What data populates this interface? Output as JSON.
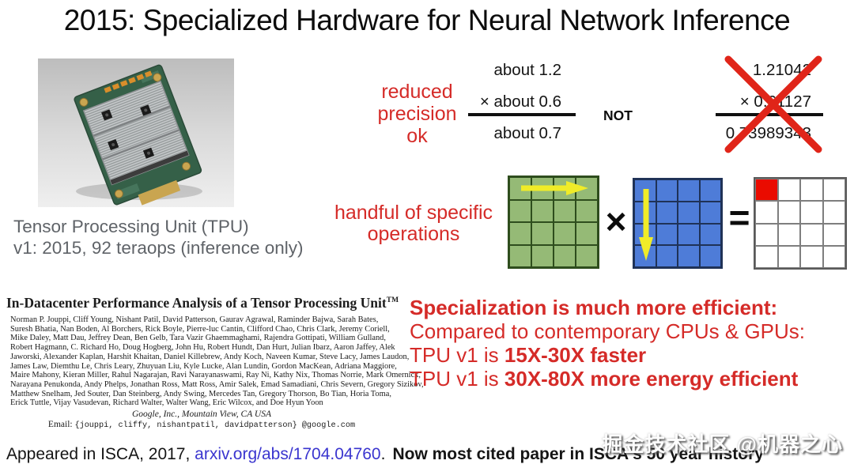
{
  "title": "2015: Specialized Hardware for Neural Network Inference",
  "tpu": {
    "caption_line1": "Tensor Processing Unit (TPU)",
    "caption_line2": "v1: 2015, 92 teraops (inference only)"
  },
  "precision": {
    "label_line1": "reduced",
    "label_line2": "precision",
    "label_line3": "ok",
    "approx": {
      "operand1": "about 1.2",
      "operand2": "× about 0.6",
      "result": "about 0.7"
    },
    "not_label": "NOT",
    "exact": {
      "operand1": "1.21042",
      "operand2": "× 0.61127",
      "result": "0.73989343"
    }
  },
  "operations": {
    "label_line1": "handful of specific",
    "label_line2": "operations",
    "times_symbol": "×",
    "equals_symbol": "="
  },
  "paper": {
    "title": "In-Datacenter Performance Analysis of a Tensor Processing Unit",
    "title_tm": "TM",
    "authors": [
      "Norman P. Jouppi, Cliff Young, Nishant Patil, David Patterson, Gaurav Agrawal, Raminder Bajwa, Sarah Bates,",
      "Suresh Bhatia, Nan Boden, Al Borchers, Rick Boyle, Pierre-luc Cantin, Clifford Chao, Chris Clark, Jeremy Coriell,",
      "Mike Daley, Matt Dau, Jeffrey Dean, Ben Gelb, Tara Vazir Ghaemmaghami, Rajendra Gottipati, William Gulland,",
      "Robert Hagmann, C. Richard Ho, Doug Hogberg, John Hu, Robert Hundt, Dan Hurt, Julian Ibarz, Aaron Jaffey, Alek",
      "Jaworski, Alexander Kaplan, Harshit Khaitan, Daniel Killebrew, Andy Koch, Naveen Kumar, Steve Lacy, James Laudon,",
      "James Law, Diemthu Le, Chris Leary, Zhuyuan Liu, Kyle Lucke, Alan Lundin, Gordon MacKean, Adriana Maggiore,",
      "Maire Mahony, Kieran Miller, Rahul Nagarajan, Ravi Narayanaswami, Ray Ni, Kathy Nix, Thomas Norrie, Mark Omernick,",
      "Narayana Penukonda, Andy Phelps, Jonathan Ross, Matt Ross, Amir Salek, Emad Samadiani, Chris Severn, Gregory Sizikov,",
      "Matthew Snelham, Jed Souter, Dan Steinberg, Andy Swing, Mercedes Tan, Gregory Thorson, Bo Tian, Horia Toma,",
      "Erick Tuttle, Vijay Vasudevan, Richard Walter, Walter Wang, Eric Wilcox, and Doe Hyun Yoon"
    ],
    "affiliation": "Google, Inc., Mountain View, CA USA",
    "email_label": "Email:",
    "email_value": "{jouppi, cliffy, nishantpatil, davidpatterson} @google.com"
  },
  "conclusion": {
    "line1": "Specialization is much more efficient:",
    "line2": "Compared to contemporary CPUs & GPUs:",
    "line3_prefix": "TPU v1 is ",
    "line3_bold": "15X-30X faster",
    "line4_prefix": "TPU v1 is ",
    "line4_bold": "30X-80X more energy efficient"
  },
  "footer": {
    "prefix": "Appeared in ISCA, 2017, ",
    "link": "arxiv.org/abs/1704.04760",
    "separator": ".",
    "bold": "Now most cited paper in ISCA's 50 year history"
  },
  "watermark": "掘金技术社区 @机器之心",
  "colors": {
    "red_text": "#d52b28",
    "cross_red": "#e02519",
    "highlight_red": "#ea0b00",
    "link_blue": "#3a35cf",
    "matrix_green": "#95ba76",
    "matrix_blue": "#4e7cd8",
    "arrow_yellow": "#f0ec28",
    "caption_gray": "#5f6368"
  }
}
